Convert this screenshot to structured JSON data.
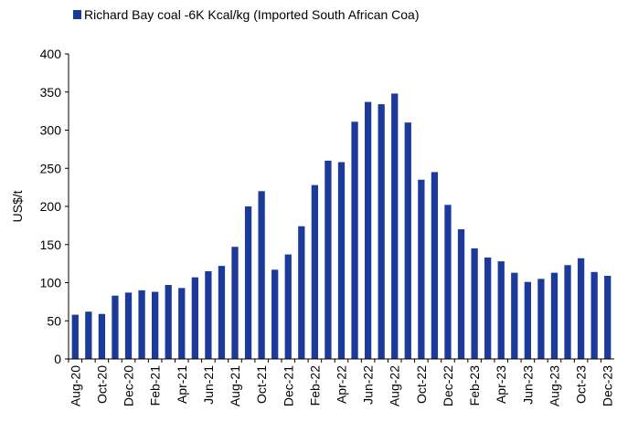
{
  "chart_data": {
    "type": "bar",
    "legend": "Richard Bay coal -6K Kcal/kg (Imported South African Coa)",
    "y_label": "US$/t",
    "color": "#1b3a9a",
    "categories": [
      "Aug-20",
      null,
      "Oct-20",
      null,
      "Dec-20",
      null,
      "Feb-21",
      null,
      "Apr-21",
      null,
      "Jun-21",
      null,
      "Aug-21",
      null,
      "Oct-21",
      null,
      "Dec-21",
      null,
      "Feb-22",
      null,
      "Apr-22",
      null,
      "Jun-22",
      null,
      "Aug-22",
      null,
      "Oct-22",
      null,
      "Dec-22",
      null,
      "Feb-23",
      null,
      "Apr-23",
      null,
      "Jun-23",
      null,
      "Aug-23",
      null,
      "Oct-23",
      null,
      "Dec-23"
    ],
    "values": [
      58,
      62,
      59,
      83,
      87,
      90,
      88,
      97,
      93,
      107,
      115,
      122,
      147,
      200,
      220,
      117,
      137,
      174,
      228,
      260,
      258,
      311,
      337,
      334,
      348,
      310,
      235,
      245,
      202,
      170,
      145,
      133,
      128,
      113,
      101,
      105,
      113,
      123,
      132,
      114,
      109
    ],
    "ylim": [
      0,
      400
    ],
    "yticks": [
      0,
      50,
      100,
      150,
      200,
      250,
      300,
      350,
      400
    ],
    "grid": false
  }
}
